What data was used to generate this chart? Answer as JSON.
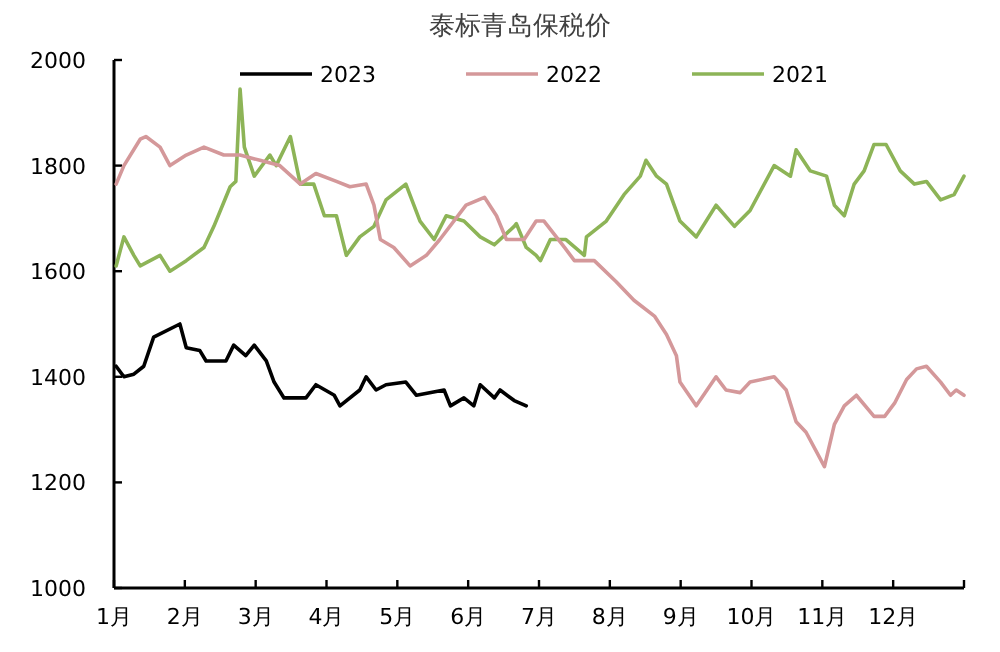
{
  "chart_data": {
    "type": "line",
    "title": "泰标青岛保税价",
    "legend": "top",
    "xlim": [
      1,
      13
    ],
    "xticks": [
      {
        "value": 1,
        "label": "1月"
      },
      {
        "value": 2,
        "label": "2月"
      },
      {
        "value": 3,
        "label": "3月"
      },
      {
        "value": 4,
        "label": "4月"
      },
      {
        "value": 5,
        "label": "5月"
      },
      {
        "value": 6,
        "label": "6月"
      },
      {
        "value": 7,
        "label": "7月"
      },
      {
        "value": 8,
        "label": "8月"
      },
      {
        "value": 9,
        "label": "9月"
      },
      {
        "value": 10,
        "label": "10月"
      },
      {
        "value": 11,
        "label": "11月"
      },
      {
        "value": 12,
        "label": "12月"
      },
      {
        "value": 13,
        "label": null
      }
    ],
    "ylim": [
      1000,
      2000
    ],
    "yticks": [
      1000,
      1200,
      1400,
      1600,
      1800,
      2000
    ],
    "series": [
      {
        "name": "2023",
        "color": "#000000",
        "x": [
          1.03,
          1.14,
          1.28,
          1.42,
          1.56,
          1.93,
          2.02,
          2.21,
          2.3,
          2.58,
          2.69,
          2.86,
          2.98,
          3.15,
          3.26,
          3.4,
          3.71,
          3.85,
          4.11,
          4.19,
          4.47,
          4.56,
          4.7,
          4.84,
          5.12,
          5.27,
          5.66,
          5.75,
          5.94,
          6.08,
          6.17,
          6.37,
          6.45,
          6.65,
          6.82
        ],
        "values": [
          1420,
          1400,
          1405,
          1420,
          1475,
          1500,
          1455,
          1450,
          1430,
          1430,
          1460,
          1440,
          1460,
          1430,
          1390,
          1360,
          1360,
          1385,
          1365,
          1345,
          1375,
          1400,
          1375,
          1385,
          1390,
          1365,
          1375,
          1345,
          1360,
          1345,
          1385,
          1360,
          1375,
          1355,
          1345
        ]
      },
      {
        "name": "2022",
        "color": "#d4989a",
        "x": [
          1.03,
          1.14,
          1.37,
          1.45,
          1.65,
          1.79,
          2.02,
          2.27,
          2.55,
          2.78,
          3.06,
          3.34,
          3.63,
          3.85,
          4.14,
          4.33,
          4.56,
          4.67,
          4.76,
          4.95,
          5.18,
          5.41,
          5.6,
          5.97,
          6.23,
          6.4,
          6.54,
          6.79,
          6.96,
          7.07,
          7.36,
          7.5,
          7.78,
          8.09,
          8.34,
          8.63,
          8.8,
          8.94,
          8.99,
          9.22,
          9.5,
          9.64,
          9.84,
          9.98,
          10.32,
          10.49,
          10.63,
          10.77,
          11.03,
          11.17,
          11.31,
          11.48,
          11.73,
          11.88,
          12.02,
          12.19,
          12.33,
          12.47,
          12.67,
          12.81,
          12.89,
          13
        ],
        "values": [
          1765,
          1800,
          1850,
          1855,
          1835,
          1800,
          1820,
          1835,
          1820,
          1820,
          1810,
          1800,
          1765,
          1785,
          1770,
          1760,
          1765,
          1725,
          1660,
          1645,
          1610,
          1630,
          1660,
          1725,
          1740,
          1705,
          1660,
          1660,
          1695,
          1695,
          1645,
          1620,
          1620,
          1580,
          1545,
          1515,
          1480,
          1440,
          1390,
          1345,
          1400,
          1375,
          1370,
          1390,
          1400,
          1375,
          1315,
          1295,
          1230,
          1310,
          1345,
          1365,
          1325,
          1325,
          1350,
          1395,
          1415,
          1420,
          1390,
          1365,
          1375,
          1365
        ]
      },
      {
        "name": "2021",
        "color": "#8db457",
        "x": [
          1.03,
          1.14,
          1.28,
          1.37,
          1.65,
          1.79,
          2.02,
          2.27,
          2.41,
          2.64,
          2.72,
          2.78,
          2.84,
          2.98,
          3.2,
          3.29,
          3.49,
          3.63,
          3.82,
          3.97,
          4.14,
          4.28,
          4.47,
          4.67,
          4.84,
          5.12,
          5.32,
          5.52,
          5.69,
          5.94,
          6.17,
          6.37,
          6.65,
          6.68,
          6.82,
          6.96,
          7.02,
          7.16,
          7.38,
          7.64,
          7.67,
          7.95,
          8.2,
          8.43,
          8.51,
          8.66,
          8.8,
          8.99,
          9.22,
          9.5,
          9.76,
          9.98,
          10.32,
          10.55,
          10.63,
          10.83,
          11.06,
          11.17,
          11.31,
          11.45,
          11.59,
          11.73,
          11.9,
          12.1,
          12.3,
          12.47,
          12.67,
          12.86,
          13
        ],
        "values": [
          1610,
          1665,
          1630,
          1610,
          1630,
          1600,
          1620,
          1645,
          1685,
          1760,
          1770,
          1945,
          1835,
          1780,
          1820,
          1800,
          1855,
          1765,
          1765,
          1705,
          1705,
          1630,
          1665,
          1685,
          1735,
          1765,
          1695,
          1660,
          1705,
          1695,
          1665,
          1650,
          1685,
          1690,
          1645,
          1630,
          1620,
          1660,
          1660,
          1630,
          1665,
          1695,
          1745,
          1780,
          1810,
          1780,
          1765,
          1695,
          1665,
          1725,
          1685,
          1715,
          1800,
          1780,
          1830,
          1790,
          1780,
          1725,
          1705,
          1765,
          1790,
          1840,
          1840,
          1790,
          1765,
          1770,
          1735,
          1745,
          1780
        ]
      }
    ]
  }
}
